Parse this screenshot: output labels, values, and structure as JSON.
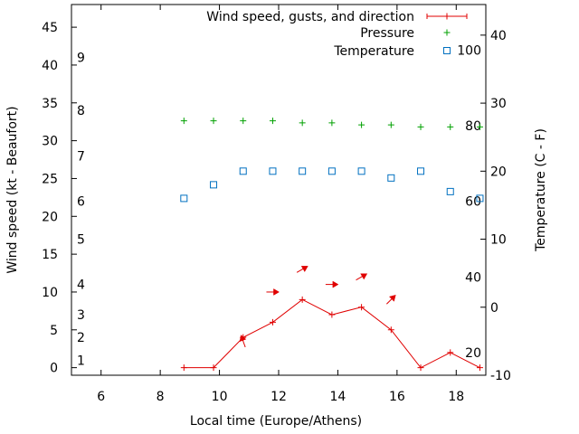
{
  "chart_data": {
    "type": "line",
    "xlabel": "Local time (Europe/Athens)",
    "ylabel_left": "Wind speed (kt - Beaufort)",
    "ylabel_right": "Temperature (C - F)",
    "xlim": [
      5,
      19
    ],
    "x_ticks": [
      6,
      8,
      10,
      12,
      14,
      16,
      18
    ],
    "ylim_left": [
      -1,
      48
    ],
    "left_ticks": [
      0,
      5,
      10,
      15,
      20,
      25,
      30,
      35,
      40,
      45
    ],
    "ylim_right": [
      -10,
      44.5
    ],
    "right_ticks": [
      -10,
      0,
      10,
      20,
      30,
      40
    ],
    "beaufort_scale": [
      {
        "label": "1",
        "kt": 1
      },
      {
        "label": "2",
        "kt": 4
      },
      {
        "label": "3",
        "kt": 7
      },
      {
        "label": "4",
        "kt": 11
      },
      {
        "label": "5",
        "kt": 17
      },
      {
        "label": "6",
        "kt": 22
      },
      {
        "label": "7",
        "kt": 28
      },
      {
        "label": "8",
        "kt": 34
      },
      {
        "label": "9",
        "kt": 41
      }
    ],
    "fahrenheit_scale": [
      {
        "label": "20",
        "c": -6.7
      },
      {
        "label": "40",
        "c": 4.4
      },
      {
        "label": "60",
        "c": 15.6
      },
      {
        "label": "80",
        "c": 26.7
      },
      {
        "label": "100",
        "c": 37.8
      }
    ],
    "legend_position": "top-right",
    "series": [
      {
        "name": "Wind speed, gusts, and direction",
        "axis": "left",
        "style": "line+points",
        "color": "#e00000",
        "x": [
          8.8,
          9.8,
          10.8,
          11.8,
          12.8,
          13.8,
          14.8,
          15.8,
          16.8,
          17.8,
          18.8
        ],
        "values": [
          0,
          0,
          4,
          6,
          9,
          7,
          8,
          5,
          0,
          2,
          0
        ]
      },
      {
        "name": "Pressure",
        "axis": "right",
        "style": "plus-points",
        "color": "#00a000",
        "x": [
          8.8,
          9.8,
          10.8,
          11.8,
          12.8,
          13.8,
          14.8,
          15.8,
          16.8,
          17.8,
          18.8
        ],
        "values": [
          27.4,
          27.4,
          27.4,
          27.4,
          27.1,
          27.1,
          26.8,
          26.8,
          26.5,
          26.5,
          26.5
        ]
      },
      {
        "name": "Temperature",
        "axis": "right",
        "style": "square-points",
        "color": "#0070c0",
        "x": [
          8.8,
          9.8,
          10.8,
          11.8,
          12.8,
          13.8,
          14.8,
          15.8,
          16.8,
          17.8,
          18.8
        ],
        "values": [
          16,
          18,
          20,
          20,
          20,
          20,
          20,
          19,
          20,
          17,
          16
        ]
      }
    ],
    "wind_arrows": [
      {
        "x": 10.8,
        "kt": 3.5,
        "dir_deg": 160
      },
      {
        "x": 11.8,
        "kt": 10,
        "dir_deg": 270
      },
      {
        "x": 12.8,
        "kt": 13,
        "dir_deg": 240
      },
      {
        "x": 13.8,
        "kt": 11,
        "dir_deg": 270
      },
      {
        "x": 14.8,
        "kt": 12,
        "dir_deg": 240
      },
      {
        "x": 15.8,
        "kt": 9,
        "dir_deg": 225
      }
    ]
  }
}
